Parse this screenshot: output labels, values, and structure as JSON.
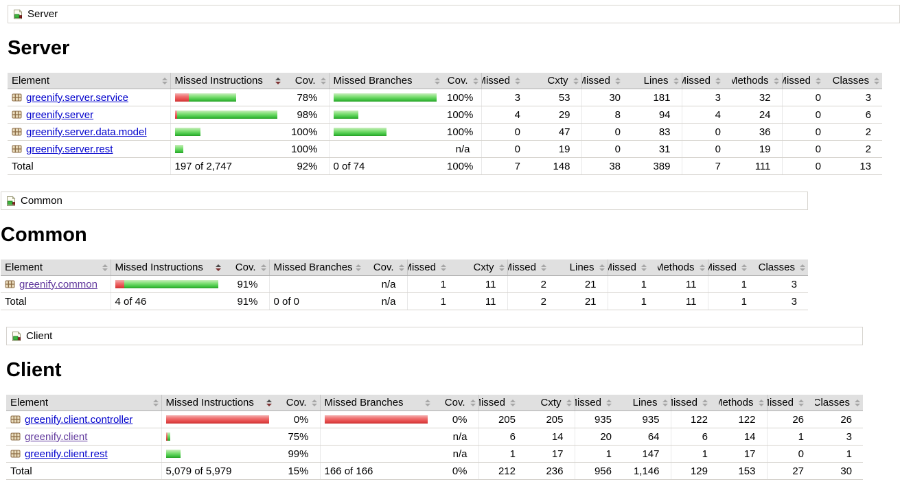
{
  "columns": {
    "element": "Element",
    "missed_instructions": "Missed Instructions",
    "cov": "Cov.",
    "missed_branches": "Missed Branches",
    "missed": "Missed",
    "cxty": "Cxty",
    "lines": "Lines",
    "methods": "Methods",
    "classes": "Classes"
  },
  "sort": {
    "active_column": "Missed Instructions",
    "direction": "desc"
  },
  "icons": {
    "breadcrumb": "report-icon",
    "package": "package-icon",
    "sort": "sort-updown-icon"
  },
  "colors": {
    "link": "#0000cc",
    "link_visited": "#61399d",
    "bar_green": "#41c341",
    "bar_red": "#e44646",
    "header_bg": "#e0e0e0",
    "header_border": "#b0b0b0",
    "row_border": "#d6d3ce"
  },
  "sections": {
    "server": {
      "breadcrumb": "Server",
      "heading": "Server",
      "rows": [
        {
          "name": "greenify.server.service",
          "visited": false,
          "instr_bar": {
            "missed": 20,
            "covered": 69
          },
          "instr_cov": "78%",
          "branch_bar": {
            "missed": 0,
            "covered": 150
          },
          "branch_cov": "100%",
          "missed_cxty": "3",
          "cxty": "53",
          "missed_lines": "30",
          "lines": "181",
          "missed_methods": "3",
          "methods": "32",
          "missed_classes": "0",
          "classes": "3"
        },
        {
          "name": "greenify.server",
          "visited": false,
          "instr_bar": {
            "missed": 3,
            "covered": 146
          },
          "instr_cov": "98%",
          "branch_bar": {
            "missed": 0,
            "covered": 36
          },
          "branch_cov": "100%",
          "missed_cxty": "4",
          "cxty": "29",
          "missed_lines": "8",
          "lines": "94",
          "missed_methods": "4",
          "methods": "24",
          "missed_classes": "0",
          "classes": "6"
        },
        {
          "name": "greenify.server.data.model",
          "visited": false,
          "instr_bar": {
            "missed": 0,
            "covered": 37
          },
          "instr_cov": "100%",
          "branch_bar": {
            "missed": 0,
            "covered": 77
          },
          "branch_cov": "100%",
          "missed_cxty": "0",
          "cxty": "47",
          "missed_lines": "0",
          "lines": "83",
          "missed_methods": "0",
          "methods": "36",
          "missed_classes": "0",
          "classes": "2"
        },
        {
          "name": "greenify.server.rest",
          "visited": false,
          "instr_bar": {
            "missed": 0,
            "covered": 12
          },
          "instr_cov": "100%",
          "branch_bar": null,
          "branch_cov": "n/a",
          "missed_cxty": "0",
          "cxty": "19",
          "missed_lines": "0",
          "lines": "31",
          "missed_methods": "0",
          "methods": "19",
          "missed_classes": "0",
          "classes": "2"
        }
      ],
      "total": {
        "label": "Total",
        "instr": "197 of 2,747",
        "instr_cov": "92%",
        "branch": "0 of 74",
        "branch_cov": "100%",
        "missed_cxty": "7",
        "cxty": "148",
        "missed_lines": "38",
        "lines": "389",
        "missed_methods": "7",
        "methods": "111",
        "missed_classes": "0",
        "classes": "13"
      }
    },
    "common": {
      "breadcrumb": "Common",
      "heading": "Common",
      "rows": [
        {
          "name": "greenify.common",
          "visited": true,
          "instr_bar": {
            "missed": 13,
            "covered": 137
          },
          "instr_cov": "91%",
          "branch_bar": null,
          "branch_cov": "n/a",
          "missed_cxty": "1",
          "cxty": "11",
          "missed_lines": "2",
          "lines": "21",
          "missed_methods": "1",
          "methods": "11",
          "missed_classes": "1",
          "classes": "3"
        }
      ],
      "total": {
        "label": "Total",
        "instr": "4 of 46",
        "instr_cov": "91%",
        "branch": "0 of 0",
        "branch_cov": "n/a",
        "missed_cxty": "1",
        "cxty": "11",
        "missed_lines": "2",
        "lines": "21",
        "missed_methods": "1",
        "methods": "11",
        "missed_classes": "1",
        "classes": "3"
      }
    },
    "client": {
      "breadcrumb": "Client",
      "heading": "Client",
      "rows": [
        {
          "name": "greenify.client.controller",
          "visited": false,
          "instr_bar": {
            "missed": 150,
            "covered": 0
          },
          "instr_cov": "0%",
          "branch_bar": {
            "missed": 150,
            "covered": 0
          },
          "branch_cov": "0%",
          "missed_cxty": "205",
          "cxty": "205",
          "missed_lines": "935",
          "lines": "935",
          "missed_methods": "122",
          "methods": "122",
          "missed_classes": "26",
          "classes": "26"
        },
        {
          "name": "greenify.client",
          "visited": true,
          "instr_bar": {
            "missed": 2,
            "covered": 4
          },
          "instr_cov": "75%",
          "branch_bar": null,
          "branch_cov": "n/a",
          "missed_cxty": "6",
          "cxty": "14",
          "missed_lines": "20",
          "lines": "64",
          "missed_methods": "6",
          "methods": "14",
          "missed_classes": "1",
          "classes": "3"
        },
        {
          "name": "greenify.client.rest",
          "visited": false,
          "instr_bar": {
            "missed": 0,
            "covered": 21
          },
          "instr_cov": "99%",
          "branch_bar": null,
          "branch_cov": "n/a",
          "missed_cxty": "1",
          "cxty": "17",
          "missed_lines": "1",
          "lines": "147",
          "missed_methods": "1",
          "methods": "17",
          "missed_classes": "0",
          "classes": "1"
        }
      ],
      "total": {
        "label": "Total",
        "instr": "5,079 of 5,979",
        "instr_cov": "15%",
        "branch": "166 of 166",
        "branch_cov": "0%",
        "missed_cxty": "212",
        "cxty": "236",
        "missed_lines": "956",
        "lines": "1,146",
        "missed_methods": "129",
        "methods": "153",
        "missed_classes": "27",
        "classes": "30"
      }
    }
  }
}
